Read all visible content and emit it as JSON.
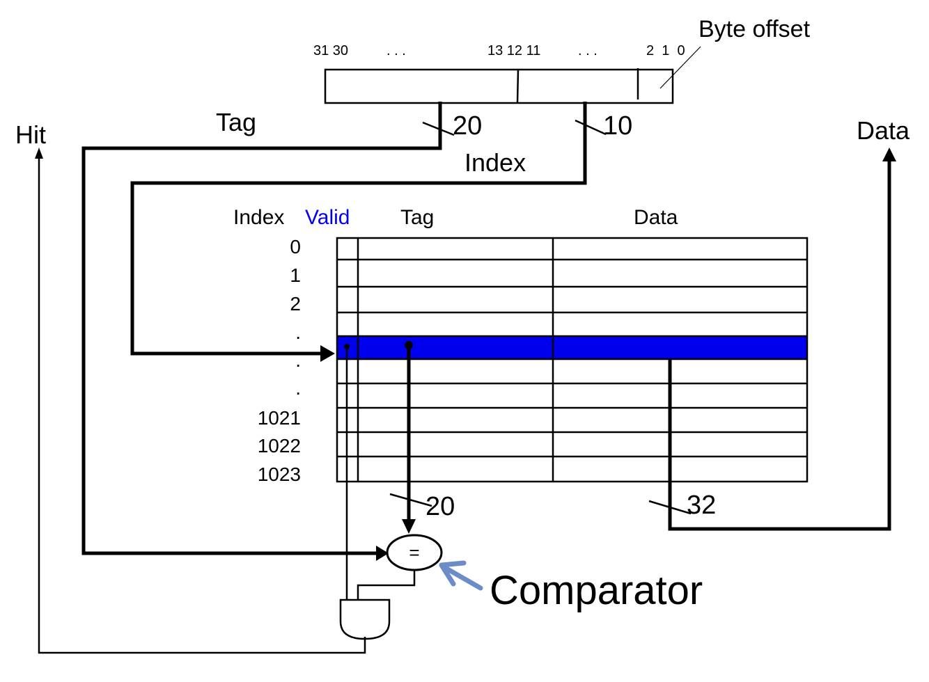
{
  "address": {
    "bits_left": "31 30",
    "dots_left": ". . .",
    "bits_mid": "13 12  11",
    "dots_right": ". . .",
    "bits_right": "2  1  0",
    "byte_offset_label": "Byte offset"
  },
  "wires": {
    "tag_label": "Tag",
    "tag_width": "20",
    "index_label": "Index",
    "index_width": "10",
    "hit_label": "Hit",
    "data_label": "Data",
    "tag_read_width": "20",
    "data_read_width": "32"
  },
  "table": {
    "headers": {
      "index": "Index",
      "valid": "Valid",
      "tag": "Tag",
      "data": "Data"
    },
    "row_labels": [
      "0",
      "1",
      "2",
      ".",
      ".",
      ".",
      "1021",
      "1022",
      "1023"
    ],
    "highlight_color": "#0000ee",
    "valid_color": "#0000ee"
  },
  "comparator": {
    "symbol": "=",
    "label": "Comparator",
    "arrow_color": "#6b8cc7"
  }
}
